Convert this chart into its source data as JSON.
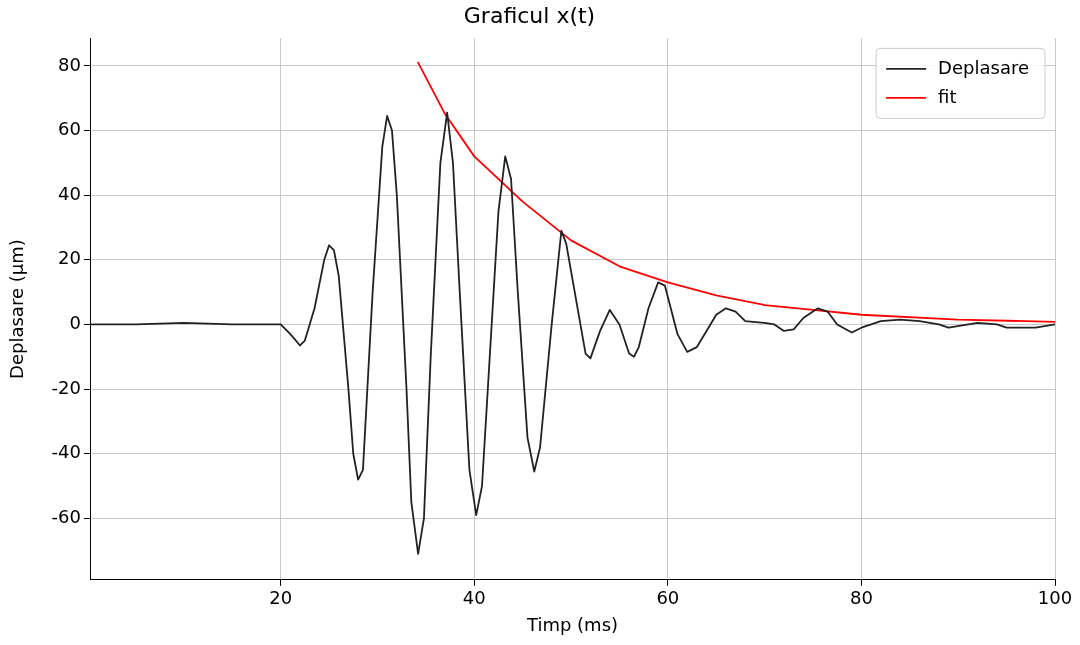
{
  "chart_data": {
    "type": "line",
    "title": "Graficul x(t)",
    "xlabel": "Timp (ms)",
    "ylabel": "Deplasare (µm)",
    "xlim": [
      0.3,
      100
    ],
    "ylim": [
      -79,
      88.5
    ],
    "xticks": [
      20,
      40,
      60,
      80,
      100
    ],
    "yticks": [
      -60,
      -40,
      -20,
      0,
      20,
      40,
      60,
      80
    ],
    "grid": true,
    "legend": "top right",
    "marker": "none",
    "line_style": "solid",
    "series": [
      {
        "name": "Deplasare",
        "color": "#222222",
        "x": [
          0.3,
          5,
          10,
          15,
          20,
          21,
          22,
          22.5,
          23.5,
          24.5,
          25,
          25.5,
          26,
          27,
          27.5,
          28,
          28.5,
          29.5,
          30.5,
          31,
          31.5,
          32,
          33,
          33.5,
          34.2,
          34.8,
          35.5,
          36.5,
          37.2,
          37.8,
          38.5,
          39.5,
          40.2,
          40.8,
          41.5,
          42.5,
          43.2,
          43.8,
          44.5,
          45.5,
          46.2,
          46.8,
          48,
          49,
          49.5,
          51.5,
          52,
          53,
          54,
          55,
          56,
          56.5,
          57,
          58,
          59,
          59.7,
          61,
          62,
          63,
          64,
          65,
          66,
          67,
          68,
          70,
          71,
          72,
          73,
          74,
          75.5,
          76.5,
          77.5,
          79,
          80,
          82,
          84,
          86,
          88,
          89,
          92,
          94,
          95,
          98,
          100
        ],
        "values": [
          0,
          0,
          0.5,
          0,
          0,
          -3,
          -6.5,
          -5,
          5,
          20,
          24.5,
          23,
          15,
          -20,
          -40,
          -48,
          -45,
          10,
          55,
          64.5,
          60,
          40,
          -20,
          -55,
          -71,
          -60,
          -10,
          50,
          65.5,
          50,
          10,
          -45,
          -59,
          -50,
          -15,
          35,
          52,
          45,
          10,
          -35,
          -45.5,
          -38,
          0,
          29,
          25,
          -9,
          -10.5,
          -2,
          4.5,
          0,
          -9,
          -10,
          -7,
          5,
          13,
          12,
          -3,
          -8.5,
          -7,
          -2,
          3,
          5,
          4,
          1,
          0.5,
          0,
          -2,
          -1.5,
          2,
          5,
          4,
          0,
          -2.5,
          -1,
          1,
          1.5,
          1,
          0,
          -1,
          0.5,
          0,
          -1,
          -1,
          0
        ]
      },
      {
        "name": "fit",
        "color": "#ff0000",
        "x": [
          34.2,
          37,
          40,
          45,
          50,
          55,
          60,
          65,
          70,
          75,
          80,
          90,
          100
        ],
        "values": [
          81,
          65,
          52,
          38,
          26,
          18,
          13,
          9,
          6,
          4.5,
          3,
          1.5,
          0.8
        ]
      }
    ]
  }
}
